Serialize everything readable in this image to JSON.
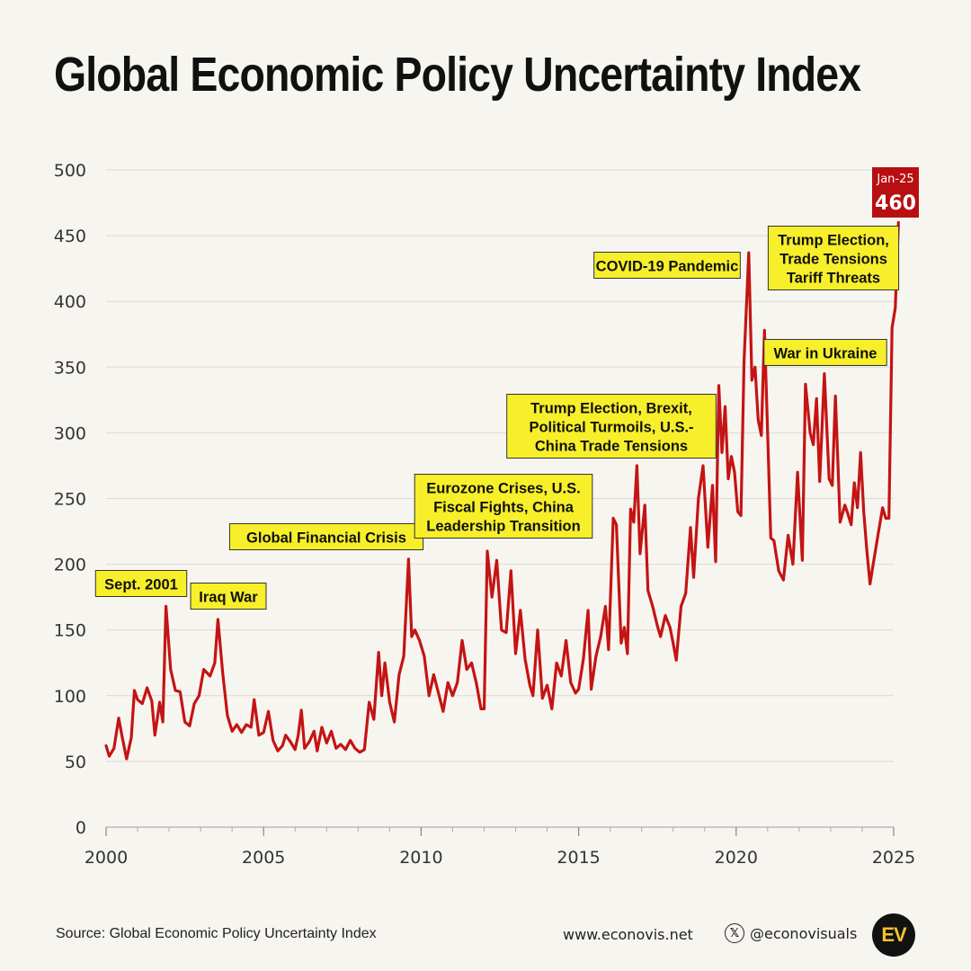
{
  "title": "Global Economic Policy Uncertainty Index",
  "colors": {
    "line": "#c41414",
    "badge": "#b80f12",
    "annotation_bg": "#f7ef2a",
    "grid": "#dcdad4"
  },
  "chart_data": {
    "type": "line",
    "title": "Global Economic Policy Uncertainty Index",
    "xlabel": "",
    "ylabel": "",
    "xlim": [
      2000,
      2025
    ],
    "ylim": [
      0,
      500
    ],
    "yticks": [
      0,
      50,
      100,
      150,
      200,
      250,
      300,
      350,
      400,
      450,
      500
    ],
    "xticks": [
      2000,
      2005,
      2010,
      2015,
      2020,
      2025
    ],
    "grid": true,
    "series": [
      {
        "points": [
          [
            2000.0,
            62
          ],
          [
            2000.1,
            54
          ],
          [
            2000.25,
            60
          ],
          [
            2000.4,
            83
          ],
          [
            2000.5,
            70
          ],
          [
            2000.65,
            52
          ],
          [
            2000.8,
            68
          ],
          [
            2000.9,
            104
          ],
          [
            2001.0,
            97
          ],
          [
            2001.15,
            94
          ],
          [
            2001.3,
            106
          ],
          [
            2001.45,
            96
          ],
          [
            2001.55,
            70
          ],
          [
            2001.7,
            95
          ],
          [
            2001.8,
            80
          ],
          [
            2001.9,
            168
          ],
          [
            2002.05,
            120
          ],
          [
            2002.2,
            104
          ],
          [
            2002.35,
            103
          ],
          [
            2002.5,
            80
          ],
          [
            2002.65,
            77
          ],
          [
            2002.8,
            94
          ],
          [
            2002.95,
            100
          ],
          [
            2003.1,
            120
          ],
          [
            2003.3,
            115
          ],
          [
            2003.45,
            125
          ],
          [
            2003.55,
            158
          ],
          [
            2003.7,
            118
          ],
          [
            2003.85,
            85
          ],
          [
            2004.0,
            73
          ],
          [
            2004.15,
            78
          ],
          [
            2004.3,
            72
          ],
          [
            2004.45,
            78
          ],
          [
            2004.6,
            76
          ],
          [
            2004.7,
            97
          ],
          [
            2004.85,
            70
          ],
          [
            2005.0,
            72
          ],
          [
            2005.15,
            88
          ],
          [
            2005.3,
            66
          ],
          [
            2005.45,
            58
          ],
          [
            2005.6,
            62
          ],
          [
            2005.7,
            70
          ],
          [
            2005.85,
            65
          ],
          [
            2006.0,
            59
          ],
          [
            2006.1,
            70
          ],
          [
            2006.2,
            89
          ],
          [
            2006.3,
            60
          ],
          [
            2006.45,
            65
          ],
          [
            2006.6,
            73
          ],
          [
            2006.7,
            58
          ],
          [
            2006.85,
            76
          ],
          [
            2007.0,
            64
          ],
          [
            2007.15,
            73
          ],
          [
            2007.3,
            60
          ],
          [
            2007.45,
            63
          ],
          [
            2007.6,
            59
          ],
          [
            2007.75,
            66
          ],
          [
            2007.9,
            60
          ],
          [
            2008.05,
            57
          ],
          [
            2008.2,
            59
          ],
          [
            2008.35,
            95
          ],
          [
            2008.5,
            82
          ],
          [
            2008.65,
            133
          ],
          [
            2008.75,
            100
          ],
          [
            2008.85,
            125
          ],
          [
            2009.0,
            95
          ],
          [
            2009.15,
            80
          ],
          [
            2009.3,
            116
          ],
          [
            2009.45,
            130
          ],
          [
            2009.6,
            204
          ],
          [
            2009.7,
            145
          ],
          [
            2009.8,
            150
          ],
          [
            2009.95,
            142
          ],
          [
            2010.1,
            130
          ],
          [
            2010.25,
            100
          ],
          [
            2010.4,
            116
          ],
          [
            2010.55,
            102
          ],
          [
            2010.7,
            88
          ],
          [
            2010.85,
            110
          ],
          [
            2011.0,
            100
          ],
          [
            2011.15,
            110
          ],
          [
            2011.3,
            142
          ],
          [
            2011.45,
            120
          ],
          [
            2011.6,
            125
          ],
          [
            2011.75,
            110
          ],
          [
            2011.9,
            90
          ],
          [
            2012.0,
            90
          ],
          [
            2012.1,
            210
          ],
          [
            2012.25,
            175
          ],
          [
            2012.4,
            203
          ],
          [
            2012.55,
            150
          ],
          [
            2012.7,
            148
          ],
          [
            2012.85,
            195
          ],
          [
            2013.0,
            132
          ],
          [
            2013.15,
            165
          ],
          [
            2013.3,
            128
          ],
          [
            2013.45,
            108
          ],
          [
            2013.55,
            100
          ],
          [
            2013.7,
            150
          ],
          [
            2013.85,
            98
          ],
          [
            2014.0,
            108
          ],
          [
            2014.15,
            90
          ],
          [
            2014.3,
            125
          ],
          [
            2014.45,
            115
          ],
          [
            2014.6,
            142
          ],
          [
            2014.75,
            110
          ],
          [
            2014.9,
            102
          ],
          [
            2015.0,
            105
          ],
          [
            2015.15,
            128
          ],
          [
            2015.3,
            165
          ],
          [
            2015.4,
            105
          ],
          [
            2015.55,
            130
          ],
          [
            2015.7,
            145
          ],
          [
            2015.85,
            168
          ],
          [
            2015.95,
            135
          ],
          [
            2016.1,
            235
          ],
          [
            2016.2,
            230
          ],
          [
            2016.35,
            140
          ],
          [
            2016.45,
            152
          ],
          [
            2016.55,
            132
          ],
          [
            2016.65,
            242
          ],
          [
            2016.75,
            232
          ],
          [
            2016.85,
            275
          ],
          [
            2016.95,
            208
          ],
          [
            2017.1,
            245
          ],
          [
            2017.2,
            180
          ],
          [
            2017.35,
            168
          ],
          [
            2017.5,
            153
          ],
          [
            2017.6,
            145
          ],
          [
            2017.75,
            161
          ],
          [
            2017.9,
            152
          ],
          [
            2018.0,
            140
          ],
          [
            2018.1,
            127
          ],
          [
            2018.25,
            168
          ],
          [
            2018.4,
            178
          ],
          [
            2018.55,
            228
          ],
          [
            2018.65,
            190
          ],
          [
            2018.8,
            250
          ],
          [
            2018.95,
            275
          ],
          [
            2019.1,
            213
          ],
          [
            2019.25,
            260
          ],
          [
            2019.35,
            202
          ],
          [
            2019.45,
            336
          ],
          [
            2019.55,
            285
          ],
          [
            2019.65,
            320
          ],
          [
            2019.75,
            265
          ],
          [
            2019.85,
            282
          ],
          [
            2019.95,
            270
          ],
          [
            2020.05,
            240
          ],
          [
            2020.15,
            237
          ],
          [
            2020.25,
            355
          ],
          [
            2020.4,
            437
          ],
          [
            2020.5,
            340
          ],
          [
            2020.6,
            350
          ],
          [
            2020.7,
            310
          ],
          [
            2020.8,
            298
          ],
          [
            2020.9,
            378
          ],
          [
            2021.0,
            300
          ],
          [
            2021.1,
            220
          ],
          [
            2021.2,
            218
          ],
          [
            2021.35,
            195
          ],
          [
            2021.5,
            188
          ],
          [
            2021.65,
            222
          ],
          [
            2021.8,
            200
          ],
          [
            2021.95,
            270
          ],
          [
            2022.1,
            203
          ],
          [
            2022.2,
            337
          ],
          [
            2022.35,
            300
          ],
          [
            2022.45,
            291
          ],
          [
            2022.55,
            326
          ],
          [
            2022.65,
            263
          ],
          [
            2022.8,
            345
          ],
          [
            2022.95,
            265
          ],
          [
            2023.05,
            260
          ],
          [
            2023.15,
            328
          ],
          [
            2023.3,
            232
          ],
          [
            2023.45,
            245
          ],
          [
            2023.55,
            238
          ],
          [
            2023.65,
            230
          ],
          [
            2023.75,
            262
          ],
          [
            2023.85,
            243
          ],
          [
            2023.95,
            285
          ],
          [
            2024.05,
            240
          ],
          [
            2024.15,
            210
          ],
          [
            2024.25,
            185
          ],
          [
            2024.35,
            200
          ],
          [
            2024.5,
            222
          ],
          [
            2024.65,
            243
          ],
          [
            2024.75,
            235
          ],
          [
            2024.85,
            235
          ],
          [
            2024.95,
            380
          ],
          [
            2025.05,
            395
          ],
          [
            2025.15,
            460
          ]
        ]
      }
    ],
    "annotations": [
      {
        "text": "Sept. 2001",
        "x": 2001.75,
        "y": 168
      },
      {
        "text": "Iraq War",
        "x": 2003.3,
        "y": 158
      },
      {
        "text": "Global Financial Crisis",
        "x": 2009.6,
        "y": 204
      },
      {
        "text": "Eurozone Crises, U.S. Fiscal Fights, China Leadership Transition",
        "x": 2011.7,
        "y": 210
      },
      {
        "text": "Trump Election, Brexit, Political Turmoils, U.S.-China Trade Tensions",
        "x": 2016.9,
        "y": 275
      },
      {
        "text": "COVID-19 Pandemic",
        "x": 2020.2,
        "y": 437
      },
      {
        "text": "War in Ukraine",
        "x": 2021.1,
        "y": 378
      },
      {
        "text": "Trump Election, Trade Tensions Tariff Threats",
        "x": 2024.5,
        "y": 460
      }
    ],
    "last_point_label": {
      "date": "Jan-25",
      "value": "460"
    }
  },
  "annotation_lines": [
    [
      "Sept. 2001"
    ],
    [
      "Iraq War"
    ],
    [
      "Global Financial Crisis"
    ],
    [
      "Eurozone Crises, U.S.",
      "Fiscal Fights, China",
      "Leadership Transition"
    ],
    [
      "Trump Election, Brexit,",
      "Political Turmoils, U.S.-",
      "China Trade Tensions"
    ],
    [
      "COVID-19 Pandemic"
    ],
    [
      "War in Ukraine"
    ],
    [
      "Trump Election,",
      "Trade Tensions",
      "Tariff Threats"
    ]
  ],
  "footer": {
    "source": "Source: Global Economic Policy Uncertainty Index",
    "website": "www.econovis.net",
    "x_icon": "x-logo-icon",
    "x_icon_glyph": "𝕏",
    "handle": "@econovisuals",
    "logo_text": "EV"
  }
}
